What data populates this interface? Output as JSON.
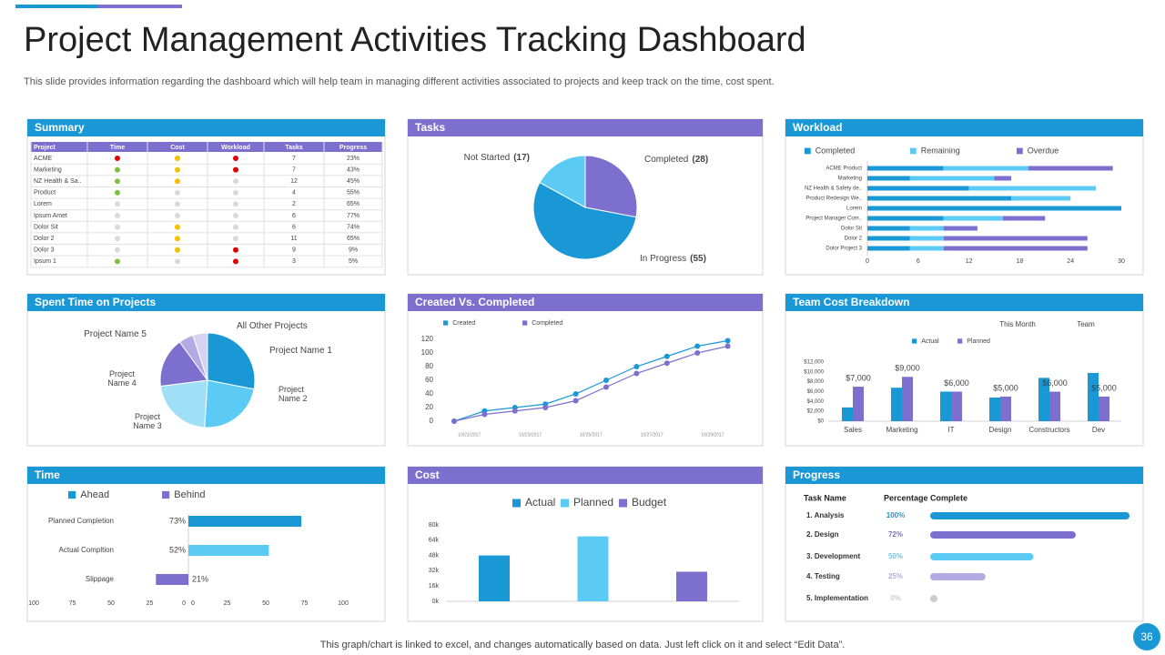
{
  "title": "Project Management Activities Tracking Dashboard",
  "subtitle": "This slide provides information regarding the dashboard which will help team in managing different activities associated to projects and keep track on the time, cost spent.",
  "footer": "This graph/chart is linked to excel, and changes automatically based on data. Just left click on it and select “Edit Data”.",
  "page_number": 36,
  "summary": {
    "title": "Summary",
    "columns": [
      "Project",
      "Time",
      "Cost",
      "Workload",
      "Tasks",
      "Progress"
    ],
    "rows": [
      [
        "ACME",
        "#e00000",
        "#f5c000",
        "#e00000",
        7,
        "23%"
      ],
      [
        "Marketing",
        "#7cc242",
        "#f5c000",
        "#e00000",
        7,
        "43%"
      ],
      [
        "NZ Health & Sa..",
        "#7cc242",
        "#f5c000",
        "#d9d9d9",
        12,
        "45%"
      ],
      [
        "Product",
        "#7cc242",
        "#d9d9d9",
        "#d9d9d9",
        4,
        "55%"
      ],
      [
        "Lorem",
        "#d9d9d9",
        "#d9d9d9",
        "#d9d9d9",
        2,
        "65%"
      ],
      [
        "Ipsum Amet",
        "#d9d9d9",
        "#d9d9d9",
        "#d9d9d9",
        6,
        "77%"
      ],
      [
        "Dolor Sit",
        "#d9d9d9",
        "#f5c000",
        "#d9d9d9",
        6,
        "74%"
      ],
      [
        "Dolor 2",
        "#d9d9d9",
        "#f5c000",
        "#d9d9d9",
        11,
        "65%"
      ],
      [
        "Dolor 3",
        "#d9d9d9",
        "#f5c000",
        "#e00000",
        9,
        "9%"
      ],
      [
        "Ipsum 1",
        "#7cc242",
        "#d9d9d9",
        "#e00000",
        3,
        "5%"
      ]
    ]
  },
  "chart_data": [
    {
      "type": "pie",
      "title": "Tasks",
      "categories": [
        "Completed",
        "In Progress",
        "Not Started"
      ],
      "values": [
        28,
        55,
        17
      ],
      "value_labels": [
        "(28)",
        "(55)",
        "(17)"
      ],
      "colors": [
        "#7d6fce",
        "#1a98d5",
        "#5bcbf5"
      ]
    },
    {
      "type": "bar",
      "orientation": "horizontal",
      "stacked": true,
      "title": "Workload",
      "categories": [
        "ACME Product",
        "Marketing",
        "NZ Health & Safety de..",
        "Product Redesign We..",
        "Lorem",
        "Project Manager Com..",
        "Dolor Sit",
        "Dolor 2",
        "Dolor Project 3"
      ],
      "series": [
        {
          "name": "Completed",
          "color": "#1a98d5",
          "values": [
            9,
            5,
            12,
            17,
            30,
            9,
            5,
            5,
            5
          ]
        },
        {
          "name": "Remaining",
          "color": "#5bcbf5",
          "values": [
            10,
            10,
            15,
            7,
            0,
            7,
            4,
            4,
            4
          ]
        },
        {
          "name": "Overdue",
          "color": "#7d6fce",
          "values": [
            10,
            2,
            0,
            0,
            0,
            5,
            4,
            17,
            17
          ]
        }
      ],
      "xlim": [
        0,
        30
      ],
      "xticks": [
        0,
        6,
        12,
        18,
        24,
        30
      ]
    },
    {
      "type": "pie",
      "title": "Spent Time on Projects",
      "categories": [
        "Project Name 1",
        "Project Name 2",
        "Project Name 3",
        "Project Name 4",
        "Project Name 5",
        "All Other Projects"
      ],
      "values": [
        28,
        23,
        22,
        17,
        5,
        5
      ],
      "colors": [
        "#1a98d5",
        "#5bcbf5",
        "#9fe0f7",
        "#7d6fce",
        "#b3a9e3",
        "#d8d2f2"
      ]
    },
    {
      "type": "line",
      "title": "Created Vs. Completed",
      "categories": [
        "10/21/2017",
        null,
        "10/23/2017",
        null,
        "10/25/2017",
        null,
        "10/27/2017",
        null,
        "10/29/2017",
        null
      ],
      "series": [
        {
          "name": "Created",
          "color": "#1a98d5",
          "values": [
            0,
            15,
            20,
            25,
            40,
            60,
            80,
            95,
            110,
            118
          ]
        },
        {
          "name": "Completed",
          "color": "#7d6fce",
          "values": [
            0,
            10,
            15,
            20,
            30,
            50,
            70,
            85,
            100,
            110
          ]
        }
      ],
      "ylim": [
        0,
        120
      ],
      "yticks": [
        0,
        20,
        40,
        60,
        80,
        100,
        120
      ]
    },
    {
      "type": "bar",
      "title": "Team Cost Breakdown",
      "annotations": [
        "This Month",
        "Team"
      ],
      "categories": [
        "Sales",
        "Marketing",
        "IT",
        "Design",
        "Constructors",
        "Dev"
      ],
      "series": [
        {
          "name": "Actual",
          "color": "#1a98d5",
          "values": [
            2800,
            6800,
            6000,
            4800,
            8800,
            9800
          ]
        },
        {
          "name": "Planned",
          "color": "#7d6fce",
          "values": [
            7000,
            9000,
            6000,
            5000,
            6000,
            5000
          ],
          "value_labels": [
            "$7,000",
            "$9,000",
            "$6,000",
            "$5,000",
            "$6,000",
            "$5,000"
          ]
        }
      ],
      "ylim": [
        0,
        12000
      ],
      "yticks": [
        {
          "value": 0,
          "label": "$0"
        },
        {
          "value": 2000,
          "label": "$2,000"
        },
        {
          "value": 4000,
          "label": "$4,000"
        },
        {
          "value": 6000,
          "label": "$6,000"
        },
        {
          "value": 8000,
          "label": "$8,000"
        },
        {
          "value": 10000,
          "label": "$10,000"
        },
        {
          "value": 12000,
          "label": "$12,000"
        }
      ]
    },
    {
      "type": "bar",
      "orientation": "horizontal",
      "title": "Time",
      "legend": [
        {
          "name": "Ahead",
          "color": "#1a98d5"
        },
        {
          "name": "Behind",
          "color": "#7d6fce"
        }
      ],
      "categories": [
        "Planned Completion",
        "Actual Compltion",
        "Slippage"
      ],
      "values": [
        73,
        52,
        -21
      ],
      "value_labels": [
        "73%",
        "52%",
        "21%"
      ],
      "colors": [
        "#1a98d5",
        "#5bcbf5",
        "#7d6fce"
      ],
      "xlim": [
        -100,
        100
      ],
      "xticks": [
        {
          "value": -100,
          "label": "100"
        },
        {
          "value": -75,
          "label": "75"
        },
        {
          "value": -50,
          "label": "50"
        },
        {
          "value": -25,
          "label": "25"
        },
        0,
        0,
        25,
        50,
        75,
        100
      ]
    },
    {
      "type": "bar",
      "title": "Cost",
      "categories": [
        null
      ],
      "series": [
        {
          "name": "Actual",
          "color": "#1a98d5",
          "values": [
            48000
          ]
        },
        {
          "name": "Planned",
          "color": "#5bcbf5",
          "values": [
            68000
          ]
        },
        {
          "name": "Budget",
          "color": "#7d6fce",
          "values": [
            31000
          ]
        }
      ],
      "ylim": [
        0,
        80000
      ],
      "yticks": [
        {
          "value": 0,
          "label": "0k"
        },
        {
          "value": 16000,
          "label": "16k"
        },
        {
          "value": 32000,
          "label": "32k"
        },
        {
          "value": 48000,
          "label": "48k"
        },
        {
          "value": 64000,
          "label": "64k"
        },
        {
          "value": 80000,
          "label": "80k"
        }
      ]
    },
    {
      "type": "bar",
      "orientation": "horizontal",
      "title": "Progress",
      "column_headers": [
        "Task Name",
        "Percentage Complete"
      ],
      "categories": [
        "1. Analysis",
        "2. Design",
        "3. Development",
        "4. Testing",
        "5. Implementation"
      ],
      "values": [
        100,
        72,
        50,
        25,
        0
      ],
      "value_labels": [
        "100%",
        "72%",
        "50%",
        "25%",
        "0%"
      ],
      "colors": [
        "#1a98d5",
        "#7d6fce",
        "#5bcbf5",
        "#b3a9e3",
        "#cccccc"
      ],
      "xlim": [
        0,
        100
      ]
    }
  ]
}
